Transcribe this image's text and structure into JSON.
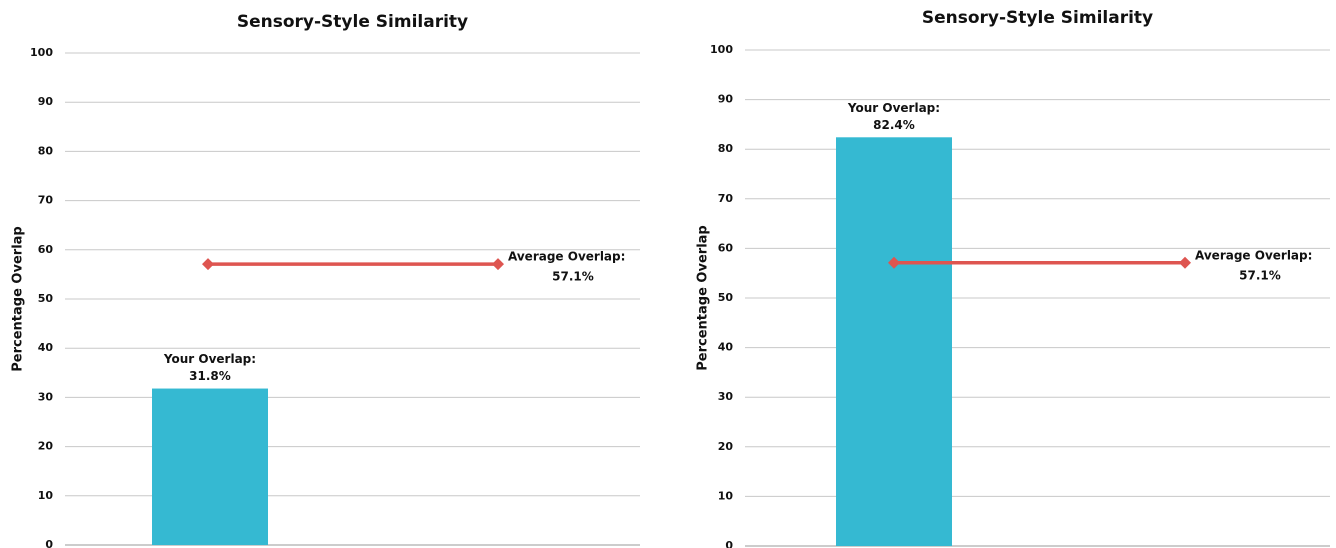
{
  "chart_data": [
    {
      "type": "bar",
      "title": "Sensory-Style Similarity",
      "y_label": "Percentage Overlap",
      "ylim": [
        0,
        100
      ],
      "yticks": [
        0,
        10,
        20,
        30,
        40,
        50,
        60,
        70,
        80,
        90,
        100
      ],
      "grid": true,
      "series": [
        {
          "name": "Your Overlap:",
          "type": "bar",
          "color": "#35b9d2",
          "values": [
            31.8
          ],
          "value_labels": [
            "31.8%"
          ]
        },
        {
          "name": "Average Overlap:",
          "type": "line",
          "color": "#de5550",
          "values": [
            57.1,
            57.1
          ],
          "value_labels": [
            null,
            "57.1%"
          ]
        }
      ]
    },
    {
      "type": "bar",
      "title": "Sensory-Style Similarity",
      "y_label": "Percentage Overlap",
      "ylim": [
        0,
        100
      ],
      "yticks": [
        0,
        10,
        20,
        30,
        40,
        50,
        60,
        70,
        80,
        90,
        100
      ],
      "grid": true,
      "series": [
        {
          "name": "Your Overlap:",
          "type": "bar",
          "color": "#35b9d2",
          "values": [
            82.4
          ],
          "value_labels": [
            "82.4%"
          ]
        },
        {
          "name": "Average Overlap:",
          "type": "line",
          "color": "#de5550",
          "values": [
            57.1,
            57.1
          ],
          "value_labels": [
            null,
            "57.1%"
          ]
        }
      ]
    }
  ]
}
